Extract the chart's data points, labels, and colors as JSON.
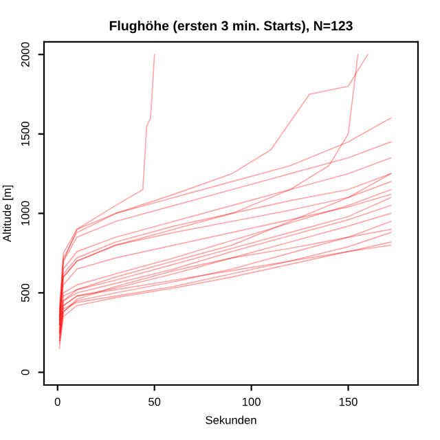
{
  "chart_data": {
    "type": "line",
    "title": "Flughöhe (ersten 3 min. Starts), N=123",
    "xlabel": "Sekunden",
    "ylabel": "Altitude [m]",
    "xlim": [
      -7,
      186
    ],
    "xticks": [
      0,
      50,
      100,
      150
    ],
    "ylim": [
      -80,
      2080
    ],
    "yticks": [
      0,
      500,
      1000,
      1500,
      2000
    ],
    "grid": false,
    "legend": false,
    "marker": "none",
    "line_style": "solid",
    "x": [
      1,
      3,
      10,
      30,
      60,
      90,
      120,
      150,
      172
    ],
    "series": [
      {
        "color": "#ff0000",
        "values": [
          150,
          380,
          450,
          500,
          570,
          650,
          750,
          850,
          950
        ]
      },
      {
        "color": "#ff0000",
        "values": [
          200,
          420,
          480,
          530,
          620,
          720,
          820,
          920,
          1000
        ]
      },
      {
        "color": "#ff0000",
        "values": [
          250,
          450,
          500,
          560,
          650,
          760,
          860,
          960,
          1050
        ]
      },
      {
        "color": "#ff0000",
        "values": [
          180,
          350,
          420,
          470,
          530,
          600,
          680,
          760,
          820
        ]
      },
      {
        "color": "#ff0000",
        "values": [
          220,
          400,
          440,
          480,
          540,
          620,
          700,
          790,
          880
        ]
      },
      {
        "color": "#ff0000",
        "values": [
          300,
          480,
          520,
          580,
          680,
          780,
          880,
          980,
          1100
        ]
      },
      {
        "color": "#ff0000",
        "values": [
          260,
          500,
          550,
          620,
          720,
          830,
          940,
          1050,
          1150
        ]
      },
      {
        "color": "#ff0000",
        "values": [
          200,
          380,
          460,
          540,
          640,
          720,
          780,
          850,
          900
        ]
      },
      {
        "color": "#ff0000",
        "values": [
          350,
          600,
          700,
          800,
          880,
          950,
          1020,
          1100,
          1200
        ]
      },
      {
        "color": "#ff0000",
        "values": [
          300,
          650,
          760,
          850,
          950,
          1050,
          1150,
          1250,
          1350
        ]
      },
      {
        "color": "#ff0000",
        "values": [
          320,
          700,
          850,
          950,
          1050,
          1150,
          1250,
          1350,
          1450
        ]
      },
      {
        "color": "#ff0000",
        "values": [
          280,
          550,
          650,
          720,
          800,
          880,
          960,
          1040,
          1120
        ]
      },
      {
        "color": "#ff0000",
        "values": [
          400,
          750,
          900,
          1000,
          1100,
          1200,
          1300,
          1450,
          1600
        ]
      },
      {
        "color": "#ff0000",
        "values": [
          250,
          450,
          520,
          600,
          700,
          800,
          950,
          1100,
          1250
        ]
      },
      {
        "color": "#ff0000",
        "values": [
          240,
          420,
          480,
          520,
          580,
          640,
          700,
          760,
          800
        ]
      },
      {
        "color": "#ff0000",
        "values": [
          330,
          620,
          720,
          820,
          920,
          1000,
          1080,
          1150,
          1250
        ]
      },
      {
        "color": "#ff0000",
        "x": [
          1,
          3,
          10,
          30,
          44,
          46,
          48,
          50
        ],
        "values": [
          350,
          700,
          900,
          1050,
          1150,
          1550,
          1600,
          2000
        ]
      },
      {
        "color": "#ff0000",
        "x": [
          1,
          3,
          10,
          30,
          60,
          90,
          110,
          130,
          150,
          160
        ],
        "values": [
          380,
          720,
          880,
          1000,
          1120,
          1250,
          1400,
          1750,
          1800,
          2000
        ]
      },
      {
        "color": "#ff0000",
        "x": [
          1,
          3,
          10,
          30,
          60,
          90,
          120,
          140,
          150,
          155
        ],
        "values": [
          300,
          600,
          700,
          800,
          900,
          1000,
          1150,
          1300,
          1500,
          2000
        ]
      }
    ]
  }
}
